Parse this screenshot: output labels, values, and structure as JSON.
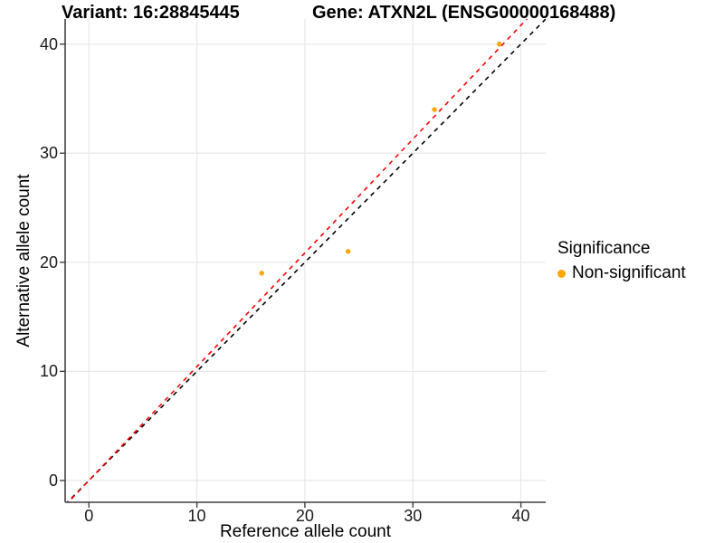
{
  "header": {
    "title_variant": "Variant: 16:28845445",
    "title_gene": "Gene: ATXN2L (ENSG00000168488)"
  },
  "legend": {
    "title": "Significance",
    "items": [
      {
        "label": "Non-significant",
        "color": "#FFA500",
        "shape": "circle"
      }
    ]
  },
  "chart_data": {
    "type": "scatter",
    "title": "Variant: 16:28845445 / Gene: ATXN2L (ENSG00000168488)",
    "xlabel": "Reference allele count",
    "ylabel": "Alternative allele count",
    "xlim": [
      -2.2,
      42.3
    ],
    "ylim": [
      -2.0,
      42.3
    ],
    "x_ticks": [
      0,
      10,
      20,
      30,
      40
    ],
    "y_ticks": [
      0,
      10,
      20,
      30,
      40
    ],
    "grid": true,
    "legend_position": "right",
    "background": "#FFFFFF",
    "grid_color": "#E8E8E8",
    "axis_color": "#3F3F3F",
    "series": [
      {
        "name": "Non-significant",
        "color": "#FFA500",
        "point_radius": 2.7,
        "points": [
          {
            "x": 16,
            "y": 19
          },
          {
            "x": 24,
            "y": 21
          },
          {
            "x": 32,
            "y": 34
          },
          {
            "x": 38,
            "y": 40
          }
        ]
      }
    ],
    "lines": [
      {
        "name": "identity-line",
        "slope": 1.0,
        "intercept": 0,
        "color": "#000000",
        "style": "dashed"
      },
      {
        "name": "fitted-line",
        "slope": 1.043,
        "intercept": 0,
        "color": "#FF0000",
        "style": "dashed"
      }
    ]
  }
}
